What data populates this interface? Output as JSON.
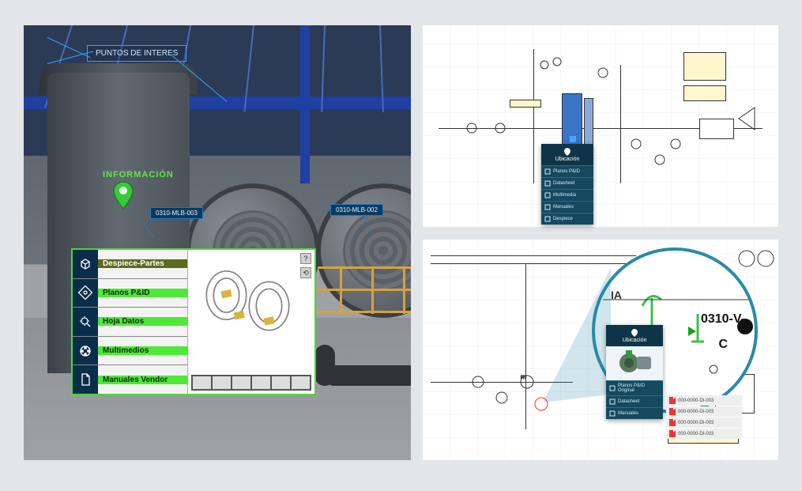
{
  "colors": {
    "page_bg": "#e2e5e9",
    "hud_border": "#3aa0ff",
    "info_green": "#5fe84a",
    "menu_border": "#4fd63a",
    "menu_active_bg": "#5c6b1f",
    "menu_item_bg": "#4fe838",
    "menu_icon_bg": "#0a2e4a",
    "popup_bg": "#16495f",
    "lens_border": "#2a8aa9",
    "beam_blue": "#1f3fa1",
    "rail_yellow": "#d7a23c"
  },
  "left": {
    "hud_title": "PUNTOS DE INTERES",
    "info_label": "INFORMACIÓN",
    "tag1": "0310-MLB-003",
    "tag2": "0310-MLB-002",
    "menu": {
      "items": [
        {
          "label": "Despiece-Partes",
          "icon": "cube-explode-icon",
          "active": true
        },
        {
          "label": "Planos P&ID",
          "icon": "blueprint-icon",
          "active": false
        },
        {
          "label": "Hoja Datos",
          "icon": "gear-search-icon",
          "active": false
        },
        {
          "label": "Multimedios",
          "icon": "film-reel-icon",
          "active": false
        },
        {
          "label": "Manuales Vendor",
          "icon": "document-icon",
          "active": false
        }
      ],
      "preview_help": "?",
      "preview_tool": "⟲",
      "thumb_count": 6
    }
  },
  "top_right": {
    "popup": {
      "title": "Ubicación",
      "rows": [
        "Planos P&ID",
        "Datasheet",
        "Multimedia",
        "Manuales",
        "Despiece"
      ]
    }
  },
  "bottom_right": {
    "lens": {
      "label_ia": "IA",
      "label_tag": "0310-V-",
      "label_c": "C"
    },
    "popup": {
      "title": "Ubicación",
      "rows": [
        "Planos P&ID Original",
        "Datasheet",
        "Manuales"
      ]
    },
    "docs": [
      "000-0000-DI-003",
      "000-0000-DI-003",
      "000-0000-DI-003",
      "000-0000-DI-003"
    ]
  }
}
